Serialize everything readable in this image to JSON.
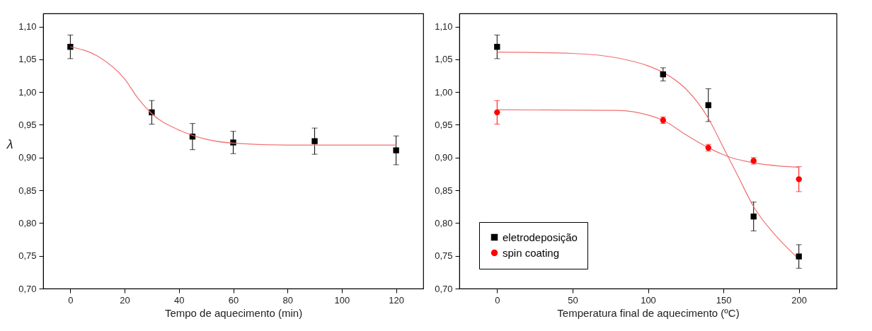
{
  "chart_data": [
    {
      "type": "scatter",
      "xlabel": "Tempo de aquecimento (min)",
      "ylabel": "λ",
      "xlim": [
        -10,
        130
      ],
      "ylim": [
        0.7,
        1.12
      ],
      "xticks": [
        0,
        20,
        40,
        60,
        80,
        100,
        120
      ],
      "yticks": [
        {
          "value": 0.7,
          "label": "0,70"
        },
        {
          "value": 0.75,
          "label": "0,75"
        },
        {
          "value": 0.8,
          "label": "0,80"
        },
        {
          "value": 0.85,
          "label": "0,85"
        },
        {
          "value": 0.9,
          "label": "0,90"
        },
        {
          "value": 0.95,
          "label": "0,95"
        },
        {
          "value": 1.0,
          "label": "1,00"
        },
        {
          "value": 1.05,
          "label": "1,05"
        },
        {
          "value": 1.1,
          "label": "1,10"
        }
      ],
      "grid": false,
      "series": [
        {
          "marker": "square",
          "color": "#000000",
          "x": [
            0,
            30,
            45,
            60,
            90,
            120
          ],
          "values": [
            1.069,
            0.969,
            0.932,
            0.923,
            0.925,
            0.911
          ],
          "errors": [
            0.018,
            0.018,
            0.02,
            0.017,
            0.02,
            0.022
          ]
        },
        {
          "type": "line",
          "color": "#f07070",
          "x": [
            0,
            10,
            20,
            25,
            30,
            40,
            50,
            60,
            80,
            100,
            120
          ],
          "values": [
            1.069,
            1.055,
            1.02,
            0.99,
            0.967,
            0.942,
            0.928,
            0.922,
            0.919,
            0.919,
            0.919
          ]
        }
      ]
    },
    {
      "type": "scatter",
      "xlabel": "Temperatura final de aquecimento (ºC)",
      "xlim": [
        -25,
        225
      ],
      "ylim": [
        0.7,
        1.12
      ],
      "xticks": [
        0,
        50,
        100,
        150,
        200
      ],
      "yticks": [
        {
          "value": 0.7,
          "label": "0,70"
        },
        {
          "value": 0.75,
          "label": "0,75"
        },
        {
          "value": 0.8,
          "label": "0,80"
        },
        {
          "value": 0.85,
          "label": "0,85"
        },
        {
          "value": 0.9,
          "label": "0,90"
        },
        {
          "value": 0.95,
          "label": "0,95"
        },
        {
          "value": 1.0,
          "label": "1,00"
        },
        {
          "value": 1.05,
          "label": "1,05"
        },
        {
          "value": 1.1,
          "label": "1,10"
        }
      ],
      "grid": false,
      "legend": "bottom left",
      "series": [
        {
          "name": "eletrodeposição",
          "marker": "square",
          "color": "#000000",
          "x": [
            0,
            110,
            140,
            170,
            200
          ],
          "values": [
            1.069,
            1.027,
            0.98,
            0.81,
            0.749
          ],
          "errors": [
            0.018,
            0.01,
            0.025,
            0.022,
            0.018
          ]
        },
        {
          "name": "spin coating",
          "marker": "circle",
          "color": "#ff0000",
          "x": [
            0,
            110,
            140,
            170,
            200
          ],
          "values": [
            0.969,
            0.957,
            0.915,
            0.895,
            0.867
          ],
          "errors": [
            0.018,
            0.005,
            0.005,
            0.005,
            0.019
          ]
        },
        {
          "type": "line",
          "color": "#f07070",
          "x": [
            0,
            50,
            80,
            100,
            110,
            125,
            140,
            150,
            160,
            170,
            185,
            200
          ],
          "values": [
            1.061,
            1.059,
            1.052,
            1.04,
            1.03,
            1.005,
            0.96,
            0.915,
            0.87,
            0.825,
            0.78,
            0.745
          ]
        },
        {
          "type": "line",
          "color": "#f07070",
          "x": [
            0,
            80,
            100,
            110,
            125,
            140,
            155,
            170,
            200
          ],
          "values": [
            0.973,
            0.972,
            0.965,
            0.957,
            0.935,
            0.915,
            0.9,
            0.892,
            0.885
          ]
        }
      ]
    }
  ]
}
